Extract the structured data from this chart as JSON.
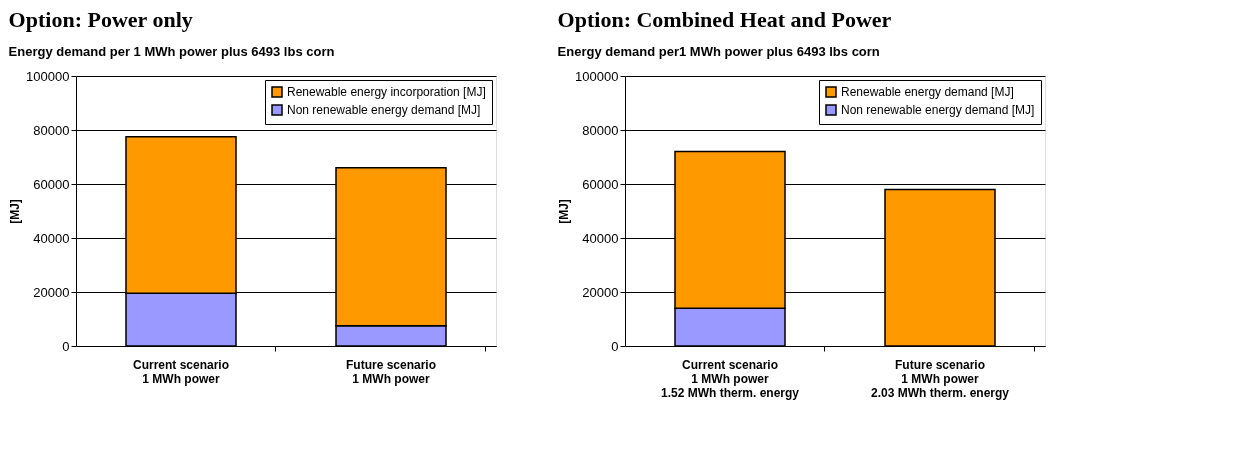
{
  "chart_data": [
    {
      "type": "bar",
      "stacked": true,
      "annotations": [
        "Option: Power only"
      ],
      "title": "Energy demand per 1 MWh power plus 6493 lbs corn",
      "ylabel": "[MJ]",
      "categories": [
        "Current scenario\n1 MWh power",
        "Future scenario\n1 MWh power"
      ],
      "series": [
        {
          "name": "Non renewable energy demand [MJ]",
          "color": "#9999ff",
          "values": [
            19500,
            7500
          ]
        },
        {
          "name": "Renewable energy incorporation [MJ]",
          "color": "#ff9900",
          "values": [
            58000,
            58500
          ]
        }
      ],
      "ylim": [
        0,
        100000
      ],
      "yticks": [
        0,
        20000,
        40000,
        60000,
        80000,
        100000
      ],
      "grid": "y",
      "legend": "top right"
    },
    {
      "type": "bar",
      "stacked": true,
      "annotations": [
        "Option: Combined Heat and Power"
      ],
      "title": "Energy demand per1 MWh power plus 6493 lbs corn",
      "ylabel": "[MJ]",
      "categories": [
        "Current scenario\n1 MWh power\n1.52 MWh therm. energy",
        "Future scenario\n1 MWh power\n2.03 MWh therm. energy"
      ],
      "series": [
        {
          "name": "Non renewable energy demand [MJ]",
          "color": "#9999ff",
          "values": [
            14000,
            0
          ]
        },
        {
          "name": "Renewable energy demand [MJ]",
          "color": "#ff9900",
          "values": [
            58000,
            58000
          ]
        }
      ],
      "ylim": [
        0,
        100000
      ],
      "yticks": [
        0,
        20000,
        40000,
        60000,
        80000,
        100000
      ],
      "grid": "y",
      "legend": "top right"
    }
  ]
}
